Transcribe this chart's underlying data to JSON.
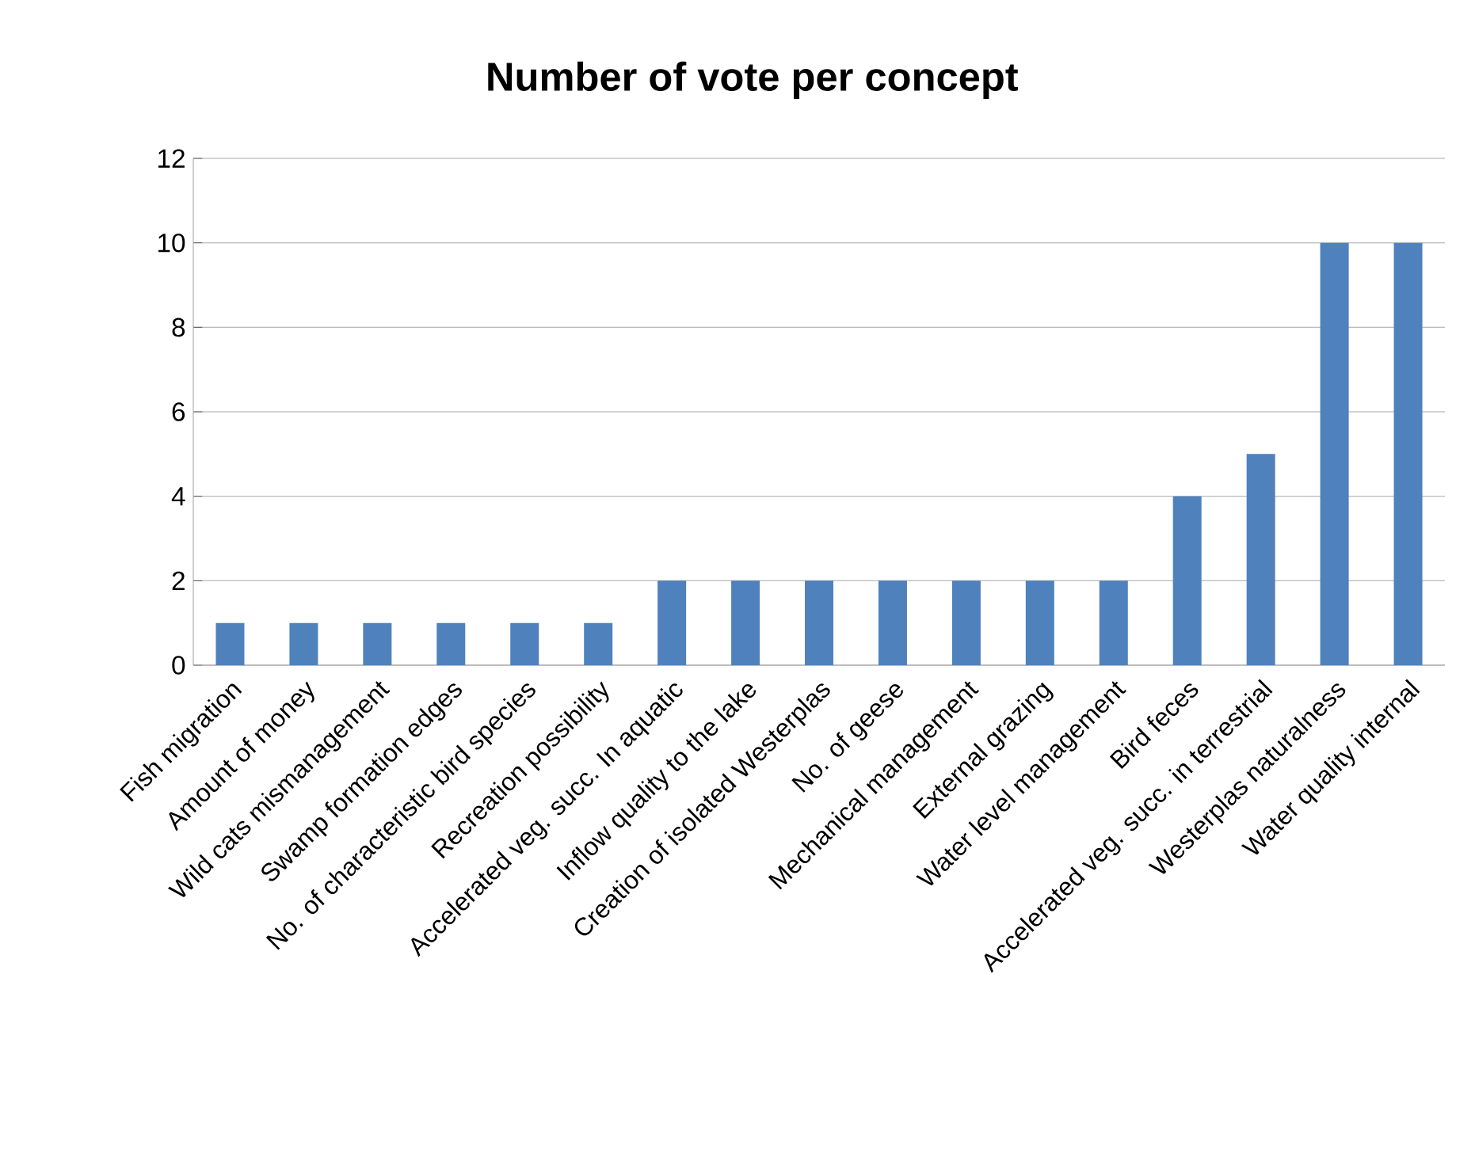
{
  "chart_data": {
    "type": "bar",
    "title": "Number of vote per concept",
    "categories": [
      "Fish migration",
      "Amount of money",
      "Wild cats  mismanagement",
      "Swamp formation edges",
      "No. of characteristic bird species",
      "Recreation possibility",
      "Accelerated veg. succ. In aquatic",
      "Inflow quality to the lake",
      "Creation of isolated Westerplas",
      "No. of geese",
      "Mechanical management",
      "External  grazing",
      "Water level management",
      "Bird feces",
      "Accelerated veg. succ. in terrestrial",
      "Westerplas naturalness",
      "Water quality internal"
    ],
    "values": [
      1,
      1,
      1,
      1,
      1,
      1,
      2,
      2,
      2,
      2,
      2,
      2,
      2,
      4,
      5,
      10,
      10
    ],
    "color": "#4f81bd",
    "ylim": [
      0,
      12
    ],
    "yticks": [
      0,
      2,
      4,
      6,
      8,
      10,
      12
    ],
    "grid": "y"
  }
}
